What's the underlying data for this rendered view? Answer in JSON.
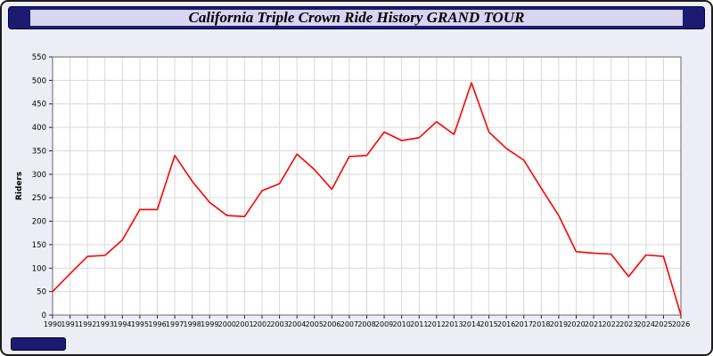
{
  "header": {
    "title": "California Triple Crown Ride History GRAND TOUR"
  },
  "colors": {
    "frame_bg": "#ededf6",
    "navy": "#1b1b72",
    "title_panel": "#d6d6f0",
    "plot_bg": "#ffffff",
    "grid": "#d9d9d9",
    "plot_border": "#666666",
    "line": "#ff0000",
    "tick": "#222222"
  },
  "chart_data": {
    "type": "line",
    "title": "California Triple Crown Ride History GRAND TOUR",
    "xlabel": "",
    "ylabel": "Riders",
    "ylim": [
      0,
      550
    ],
    "ytick_step": 50,
    "grid": true,
    "legend_position": "none",
    "x": [
      1990,
      1991,
      1992,
      1993,
      1994,
      1995,
      1996,
      1997,
      1998,
      1999,
      2000,
      2001,
      2002,
      2003,
      2004,
      2005,
      2006,
      2007,
      2008,
      2009,
      2010,
      2011,
      2012,
      2013,
      2014,
      2015,
      2016,
      2017,
      2018,
      2019,
      2020,
      2021,
      2022,
      2023,
      2024,
      2025,
      2026
    ],
    "series": [
      {
        "name": "Riders",
        "color": "#ff0000",
        "values": [
          50,
          88,
          125,
          127,
          160,
          225,
          225,
          340,
          285,
          240,
          212,
          210,
          265,
          280,
          343,
          310,
          268,
          338,
          340,
          390,
          372,
          378,
          412,
          385,
          495,
          390,
          355,
          330,
          270,
          212,
          135,
          132,
          130,
          82,
          128,
          125,
          0
        ]
      }
    ]
  }
}
